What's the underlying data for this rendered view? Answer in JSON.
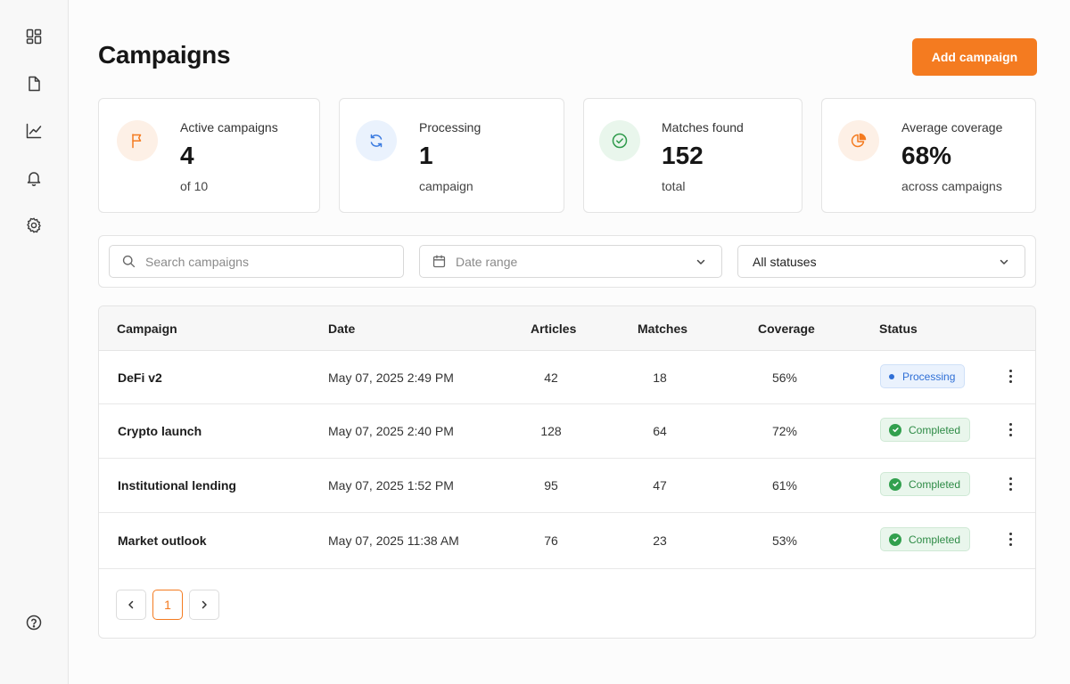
{
  "sidebar": {
    "icons": [
      "dashboard-icon",
      "document-icon",
      "analytics-icon",
      "bell-icon",
      "gear-icon",
      "help-icon"
    ]
  },
  "header": {
    "title": "Campaigns",
    "add_button": "Add campaign"
  },
  "stats": [
    {
      "label": "Active campaigns",
      "value": "4",
      "sub": "of 10",
      "icon": "flag-icon",
      "accent": "#f47b20",
      "bg": "#fdf0e6"
    },
    {
      "label": "Processing",
      "value": "1",
      "sub": "campaign",
      "icon": "refresh-icon",
      "accent": "#3b7be0",
      "bg": "#eaf2fd"
    },
    {
      "label": "Matches found",
      "value": "152",
      "sub": "total",
      "icon": "check-circle-icon",
      "accent": "#2e9a4b",
      "bg": "#e9f6ec"
    },
    {
      "label": "Average coverage",
      "value": "68%",
      "sub": "across campaigns",
      "icon": "pie-chart-icon",
      "accent": "#f47b20",
      "bg": "#fdf0e6"
    }
  ],
  "filters": {
    "search_placeholder": "Search campaigns",
    "date_placeholder": "Date range",
    "status_value": "All statuses"
  },
  "table": {
    "columns": [
      "Campaign",
      "Date",
      "Articles",
      "Matches",
      "Coverage",
      "Status"
    ],
    "rows": [
      {
        "name": "DeFi v2",
        "date": "May 07, 2025 2:49 PM",
        "articles": "42",
        "matches": "18",
        "coverage": "56%",
        "status": "Processing",
        "status_type": "processing"
      },
      {
        "name": "Crypto launch",
        "date": "May 07, 2025 2:40 PM",
        "articles": "128",
        "matches": "64",
        "coverage": "72%",
        "status": "Completed",
        "status_type": "completed"
      },
      {
        "name": "Institutional lending",
        "date": "May 07, 2025 1:52 PM",
        "articles": "95",
        "matches": "47",
        "coverage": "61%",
        "status": "Completed",
        "status_type": "completed"
      },
      {
        "name": "Market outlook",
        "date": "May 07, 2025 11:38 AM",
        "articles": "76",
        "matches": "23",
        "coverage": "53%",
        "status": "Completed",
        "status_type": "completed"
      }
    ]
  },
  "pagination": {
    "current_page": "1"
  },
  "colors": {
    "accent": "#f47b20",
    "processing": "#2f6fd6",
    "completed": "#2e8b46"
  }
}
